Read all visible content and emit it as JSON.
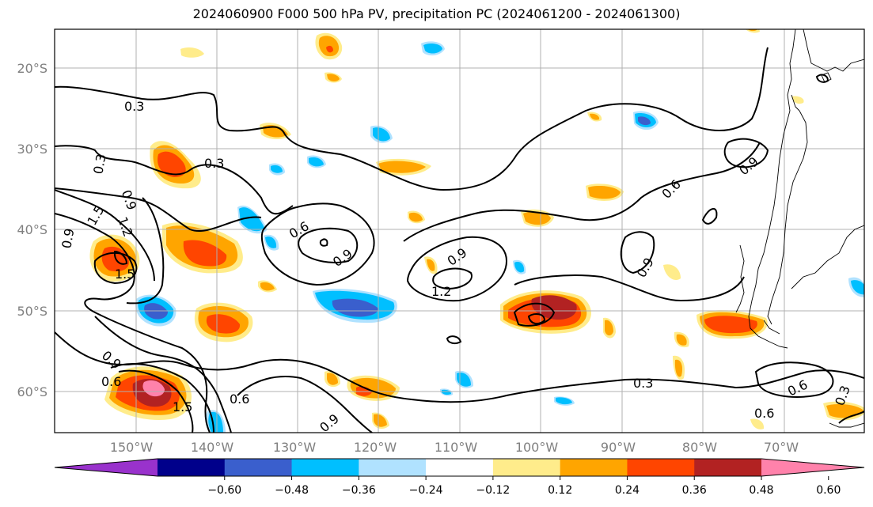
{
  "title": "2024060900 F000 500 hPa PV, precipitation PC (2024061200 - 2024061300)",
  "lat_labels": [
    "20°S",
    "30°S",
    "40°S",
    "50°S",
    "60°S"
  ],
  "lon_labels": [
    "150°W",
    "140°W",
    "130°W",
    "120°W",
    "110°W",
    "100°W",
    "90°W",
    "80°W",
    "70°W"
  ],
  "pv_contour_labels": [
    "0.3",
    "0.3",
    "0.3",
    "0.3",
    "0.6",
    "0.6",
    "0.6",
    "0.6",
    "0.6",
    "0.9",
    "0.9",
    "0.9",
    "0.9",
    "0.9",
    "0.9",
    "0.9",
    "0.9",
    "1.2",
    "1.2",
    "1.5",
    "1.5",
    "1.5",
    "0.3",
    "0.6"
  ],
  "colorbar": {
    "ticks": [
      "−0.60",
      "−0.48",
      "−0.36",
      "−0.24",
      "−0.12",
      "0.12",
      "0.24",
      "0.36",
      "0.48",
      "0.60"
    ],
    "colors": [
      "#9932cc",
      "#00008b",
      "#3a5fcd",
      "#00bfff",
      "#b0e2ff",
      "#ffffff",
      "#ffec8b",
      "#ffa500",
      "#ff4500",
      "#b22222",
      "#ff82ab"
    ]
  }
}
